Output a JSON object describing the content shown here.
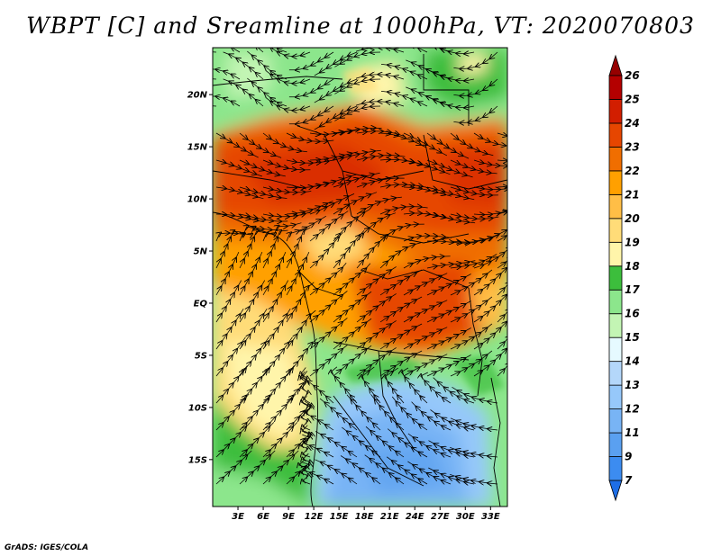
{
  "title": "WBPT [C] and Sreamline at 1000hPa, VT: 2020070803",
  "credit": "GrADS: IGES/COLA",
  "map": {
    "lon_range": [
      0,
      35
    ],
    "lat_range": [
      -19.5,
      24.5
    ],
    "lon_ticks": [
      3,
      6,
      9,
      12,
      15,
      18,
      21,
      24,
      27,
      30,
      33
    ],
    "lon_tick_labels": [
      "3E",
      "6E",
      "9E",
      "12E",
      "15E",
      "18E",
      "21E",
      "24E",
      "27E",
      "30E",
      "33E"
    ],
    "lat_ticks": [
      20,
      15,
      10,
      5,
      0,
      -5,
      -10,
      -15
    ],
    "lat_tick_labels": [
      "20N",
      "15N",
      "10N",
      "5N",
      "EQ",
      "5S",
      "10S",
      "15S"
    ]
  },
  "colorbar": {
    "levels": [
      7,
      9,
      11,
      12,
      13,
      14,
      15,
      16,
      17,
      18,
      19,
      20,
      21,
      22,
      23,
      24,
      25,
      26
    ],
    "level_labels": [
      "7",
      "9",
      "11",
      "12",
      "13",
      "14",
      "15",
      "16",
      "17",
      "18",
      "19",
      "20",
      "21",
      "22",
      "23",
      "24",
      "25",
      "26"
    ],
    "colors": [
      "#1e6ee6",
      "#3c8cf0",
      "#5aa0f0",
      "#78b4f5",
      "#96c8fa",
      "#b4d7fa",
      "#e6faff",
      "#c3f5b4",
      "#8ce68c",
      "#3cbe3c",
      "#fff5aa",
      "#ffdc78",
      "#ffbe46",
      "#ffa000",
      "#f06e00",
      "#e64600",
      "#d21e00",
      "#b40000",
      "#960000"
    ]
  }
}
